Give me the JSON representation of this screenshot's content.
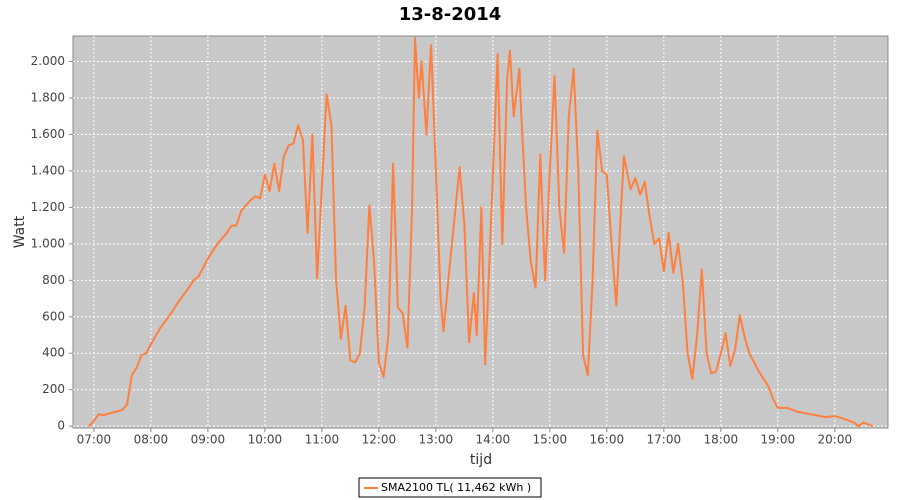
{
  "chart_data": {
    "type": "line",
    "title": "13-8-2014",
    "x_label": "tijd",
    "y_label": "Watt",
    "x": [
      "06:55",
      "07:00",
      "07:05",
      "07:10",
      "07:20",
      "07:30",
      "07:35",
      "07:40",
      "07:45",
      "07:50",
      "07:55",
      "08:00",
      "08:10",
      "08:20",
      "08:30",
      "08:40",
      "08:45",
      "08:50",
      "09:00",
      "09:10",
      "09:20",
      "09:25",
      "09:30",
      "09:35",
      "09:45",
      "09:50",
      "09:55",
      "10:00",
      "10:05",
      "10:10",
      "10:15",
      "10:20",
      "10:25",
      "10:30",
      "10:35",
      "10:40",
      "10:45",
      "10:50",
      "10:55",
      "11:05",
      "11:10",
      "11:15",
      "11:20",
      "11:25",
      "11:30",
      "11:35",
      "11:40",
      "11:45",
      "11:50",
      "11:55",
      "12:00",
      "12:05",
      "12:10",
      "12:15",
      "12:20",
      "12:25",
      "12:30",
      "12:35",
      "12:38",
      "12:42",
      "12:45",
      "12:50",
      "12:55",
      "13:00",
      "13:05",
      "13:08",
      "13:15",
      "13:25",
      "13:30",
      "13:35",
      "13:40",
      "13:43",
      "13:48",
      "13:52",
      "13:58",
      "14:05",
      "14:10",
      "14:15",
      "14:18",
      "14:22",
      "14:28",
      "14:30",
      "14:35",
      "14:40",
      "14:45",
      "14:50",
      "14:55",
      "15:00",
      "15:05",
      "15:10",
      "15:15",
      "15:20",
      "15:25",
      "15:30",
      "15:35",
      "15:40",
      "15:45",
      "15:50",
      "15:55",
      "16:00",
      "16:05",
      "16:10",
      "16:15",
      "16:18",
      "16:25",
      "16:30",
      "16:35",
      "16:40",
      "16:45",
      "16:50",
      "16:55",
      "17:00",
      "17:05",
      "17:10",
      "17:15",
      "17:20",
      "17:25",
      "17:30",
      "17:35",
      "17:40",
      "17:45",
      "17:50",
      "17:55",
      "18:00",
      "18:05",
      "18:10",
      "18:15",
      "18:20",
      "18:25",
      "18:30",
      "18:40",
      "18:50",
      "18:55",
      "19:00",
      "19:10",
      "19:20",
      "19:30",
      "19:40",
      "19:50",
      "20:00",
      "20:10",
      "20:20",
      "20:25",
      "20:30",
      "20:40"
    ],
    "series": [
      {
        "name": "SMA2100 TL( 11,462 kWh )",
        "color": "#ff7f3f",
        "values": [
          0,
          30,
          65,
          60,
          75,
          90,
          120,
          280,
          320,
          390,
          400,
          450,
          540,
          610,
          690,
          760,
          800,
          820,
          920,
          1000,
          1060,
          1100,
          1100,
          1180,
          1240,
          1260,
          1250,
          1380,
          1290,
          1440,
          1290,
          1480,
          1540,
          1550,
          1650,
          1570,
          1060,
          1600,
          810,
          1820,
          1650,
          800,
          480,
          660,
          360,
          350,
          400,
          650,
          1210,
          900,
          350,
          270,
          500,
          1440,
          650,
          620,
          430,
          1200,
          2130,
          1800,
          2000,
          1600,
          2090,
          1400,
          700,
          520,
          900,
          1420,
          1100,
          460,
          730,
          500,
          1200,
          340,
          1100,
          2040,
          1000,
          1900,
          2060,
          1700,
          1960,
          1700,
          1200,
          900,
          760,
          1490,
          800,
          1400,
          1920,
          1200,
          950,
          1700,
          1960,
          1400,
          390,
          280,
          800,
          1620,
          1400,
          1380,
          1000,
          660,
          1200,
          1480,
          1300,
          1360,
          1270,
          1340,
          1150,
          1000,
          1030,
          850,
          1060,
          840,
          1000,
          790,
          400,
          260,
          500,
          860,
          400,
          290,
          300,
          400,
          510,
          330,
          420,
          610,
          490,
          400,
          300,
          220,
          150,
          100,
          100,
          80,
          70,
          60,
          50,
          55,
          40,
          20,
          0,
          20,
          0
        ]
      }
    ],
    "xlim": [
      "06:38",
      "20:56"
    ],
    "xticks": [
      "07:00",
      "08:00",
      "09:00",
      "10:00",
      "11:00",
      "12:00",
      "13:00",
      "14:00",
      "15:00",
      "16:00",
      "17:00",
      "18:00",
      "19:00",
      "20:00"
    ],
    "ylim": [
      -10,
      2140
    ],
    "yticks": [
      0,
      200,
      400,
      600,
      800,
      {
        "value": 1000,
        "label": "1.000"
      },
      {
        "value": 1200,
        "label": "1.200"
      },
      {
        "value": 1400,
        "label": "1.400"
      },
      {
        "value": 1600,
        "label": "1.600"
      },
      {
        "value": 1800,
        "label": "1.800"
      },
      {
        "value": 2000,
        "label": "2.000"
      }
    ],
    "grid": true,
    "legend": "bottom"
  }
}
